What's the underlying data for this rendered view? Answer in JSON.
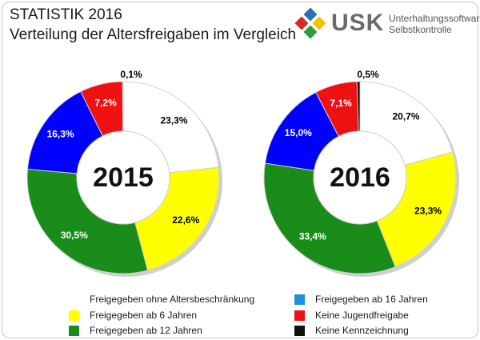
{
  "header": {
    "title": "STATISTIK 2016",
    "subtitle": "Verteilung der Altersfreigaben im Vergleich"
  },
  "logo": {
    "name": "USK",
    "line1": "Unterhaltungssoftware",
    "line2": "Selbstkontrolle",
    "colors": [
      "#2a6fb8",
      "#d62b2b",
      "#f2c200",
      "#2e9b3c"
    ]
  },
  "chart_data": [
    {
      "type": "pie",
      "title": "2015",
      "categories": [
        "Freigegeben ohne Altersbeschränkung",
        "Freigegeben ab 6 Jahren",
        "Freigegeben ab 12 Jahren",
        "Freigegeben ab 16 Jahren",
        "Keine Jugendfreigabe",
        "Keine Kennzeichnung"
      ],
      "values": [
        23.3,
        22.6,
        30.5,
        16.3,
        7.2,
        0.1
      ],
      "labels": [
        "23,3%",
        "22,6%",
        "30,5%",
        "16,3%",
        "7,2%",
        "0,1%"
      ],
      "colors": [
        "#ffffff",
        "#ffff00",
        "#1a8c1a",
        "#0000ff",
        "#ee1111",
        "#000000"
      ]
    },
    {
      "type": "pie",
      "title": "2016",
      "categories": [
        "Freigegeben ohne Altersbeschränkung",
        "Freigegeben ab 6 Jahren",
        "Freigegeben ab 12 Jahren",
        "Freigegeben ab 16 Jahren",
        "Keine Jugendfreigabe",
        "Keine Kennzeichnung"
      ],
      "values": [
        20.7,
        23.3,
        33.4,
        15.0,
        7.1,
        0.5
      ],
      "labels": [
        "20,7%",
        "23,3%",
        "33,4%",
        "15,0%",
        "7,1%",
        "0,5%"
      ],
      "colors": [
        "#ffffff",
        "#ffff00",
        "#1a8c1a",
        "#0000ff",
        "#ee1111",
        "#000000"
      ]
    }
  ],
  "legend": {
    "items": [
      {
        "label": "Freigegeben ohne Altersbeschränkung",
        "color": "#ffffff"
      },
      {
        "label": "Freigegeben ab 6 Jahren",
        "color": "#ffff00"
      },
      {
        "label": "Freigegeben ab 12 Jahren",
        "color": "#1a8c1a"
      },
      {
        "label": "Freigegeben ab 16 Jahren",
        "color": "#1e90d8"
      },
      {
        "label": "Keine Jugendfreigabe",
        "color": "#ee1111"
      },
      {
        "label": "Keine Kennzeichnung",
        "color": "#111111"
      }
    ]
  }
}
